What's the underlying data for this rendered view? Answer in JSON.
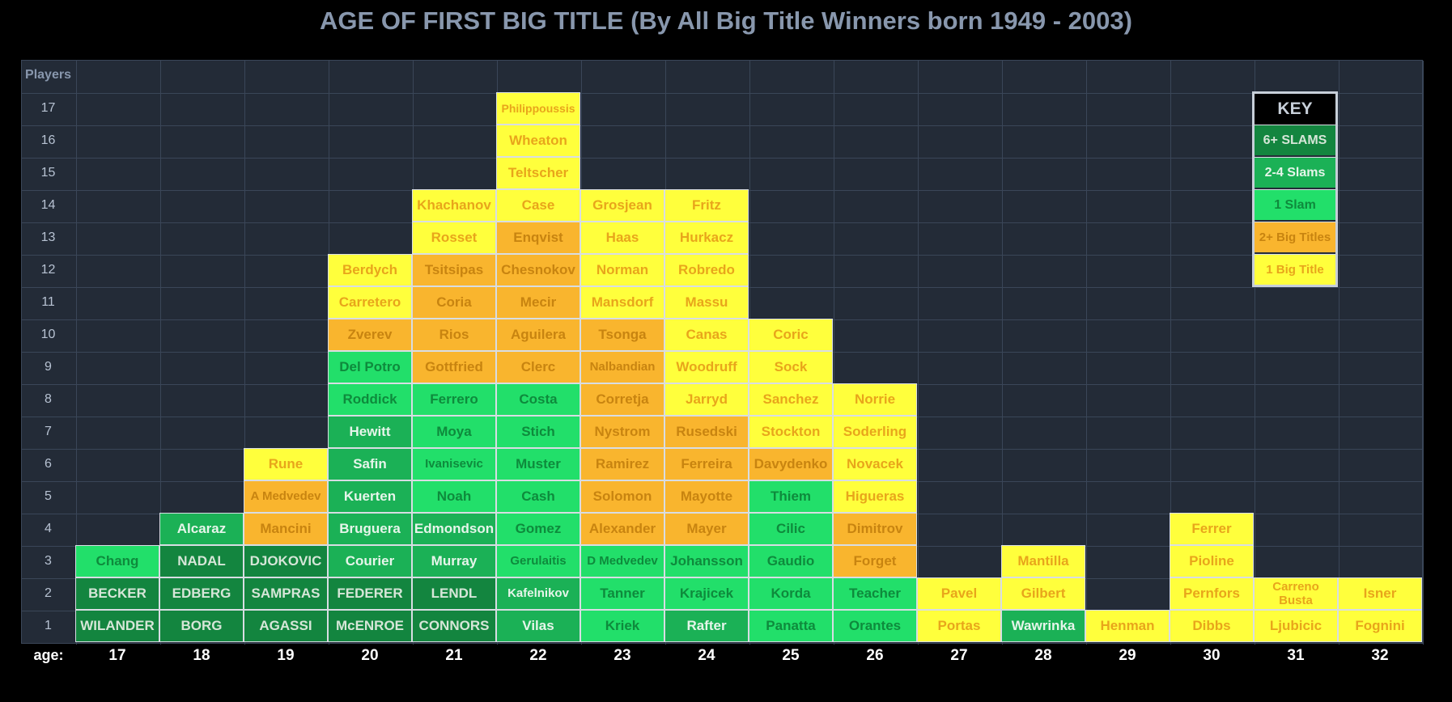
{
  "title": "AGE OF FIRST BIG TITLE (By All Big Title Winners born 1949 - 2003)",
  "chart_data": {
    "type": "table",
    "title": "AGE OF FIRST BIG TITLE (By All Big Title Winners born 1949 - 2003)",
    "ylabel": "Players",
    "xlabel": "age:",
    "x_ticks": [
      "17",
      "18",
      "19",
      "20",
      "21",
      "22",
      "23",
      "24",
      "25",
      "26",
      "27",
      "28",
      "29",
      "30",
      "31",
      "32"
    ],
    "y_ticks": [
      "1",
      "2",
      "3",
      "4",
      "5",
      "6",
      "7",
      "8",
      "9",
      "10",
      "11",
      "12",
      "13",
      "14",
      "15",
      "16",
      "17"
    ],
    "ylim": [
      0,
      17
    ],
    "category_colors": {
      "6+ SLAMS": "#13853f",
      "2-4 Slams": "#1bb156",
      "1 Slam": "#22df6a",
      "2+ Big Titles": "#f9b52e",
      "1 Big Title": "#ffff3c"
    },
    "ages": [
      {
        "age": "17",
        "players": [
          {
            "name": "WILANDER",
            "cat": "6+ SLAMS"
          },
          {
            "name": "BECKER",
            "cat": "6+ SLAMS"
          },
          {
            "name": "Chang",
            "cat": "1 Slam"
          }
        ]
      },
      {
        "age": "18",
        "players": [
          {
            "name": "BORG",
            "cat": "6+ SLAMS"
          },
          {
            "name": "EDBERG",
            "cat": "6+ SLAMS"
          },
          {
            "name": "NADAL",
            "cat": "6+ SLAMS"
          },
          {
            "name": "Alcaraz",
            "cat": "2-4 Slams"
          }
        ]
      },
      {
        "age": "19",
        "players": [
          {
            "name": "AGASSI",
            "cat": "6+ SLAMS"
          },
          {
            "name": "SAMPRAS",
            "cat": "6+ SLAMS"
          },
          {
            "name": "DJOKOVIC",
            "cat": "6+ SLAMS"
          },
          {
            "name": "Mancini",
            "cat": "2+ Big Titles"
          },
          {
            "name": "A Medvedev",
            "cat": "2+ Big Titles"
          },
          {
            "name": "Rune",
            "cat": "1 Big Title"
          }
        ]
      },
      {
        "age": "20",
        "players": [
          {
            "name": "McENROE",
            "cat": "6+ SLAMS"
          },
          {
            "name": "FEDERER",
            "cat": "6+ SLAMS"
          },
          {
            "name": "Courier",
            "cat": "2-4 Slams"
          },
          {
            "name": "Bruguera",
            "cat": "2-4 Slams"
          },
          {
            "name": "Kuerten",
            "cat": "2-4 Slams"
          },
          {
            "name": "Safin",
            "cat": "2-4 Slams"
          },
          {
            "name": "Hewitt",
            "cat": "2-4 Slams"
          },
          {
            "name": "Roddick",
            "cat": "1 Slam"
          },
          {
            "name": "Del Potro",
            "cat": "1 Slam"
          },
          {
            "name": "Zverev",
            "cat": "2+ Big Titles"
          },
          {
            "name": "Carretero",
            "cat": "1 Big Title"
          },
          {
            "name": "Berdych",
            "cat": "1 Big Title"
          }
        ]
      },
      {
        "age": "21",
        "players": [
          {
            "name": "CONNORS",
            "cat": "6+ SLAMS"
          },
          {
            "name": "LENDL",
            "cat": "6+ SLAMS"
          },
          {
            "name": "Murray",
            "cat": "2-4 Slams"
          },
          {
            "name": "Edmondson",
            "cat": "2-4 Slams"
          },
          {
            "name": "Noah",
            "cat": "1 Slam"
          },
          {
            "name": "Ivanisevic",
            "cat": "1 Slam"
          },
          {
            "name": "Moya",
            "cat": "1 Slam"
          },
          {
            "name": "Ferrero",
            "cat": "1 Slam"
          },
          {
            "name": "Gottfried",
            "cat": "2+ Big Titles"
          },
          {
            "name": "Rios",
            "cat": "2+ Big Titles"
          },
          {
            "name": "Coria",
            "cat": "2+ Big Titles"
          },
          {
            "name": "Tsitsipas",
            "cat": "2+ Big Titles"
          },
          {
            "name": "Rosset",
            "cat": "1 Big Title"
          },
          {
            "name": "Khachanov",
            "cat": "1 Big Title"
          }
        ]
      },
      {
        "age": "22",
        "players": [
          {
            "name": "Vilas",
            "cat": "2-4 Slams"
          },
          {
            "name": "Kafelnikov",
            "cat": "2-4 Slams"
          },
          {
            "name": "Gerulaitis",
            "cat": "1 Slam"
          },
          {
            "name": "Gomez",
            "cat": "1 Slam"
          },
          {
            "name": "Cash",
            "cat": "1 Slam"
          },
          {
            "name": "Muster",
            "cat": "1 Slam"
          },
          {
            "name": "Stich",
            "cat": "1 Slam"
          },
          {
            "name": "Costa",
            "cat": "1 Slam"
          },
          {
            "name": "Clerc",
            "cat": "2+ Big Titles"
          },
          {
            "name": "Aguilera",
            "cat": "2+ Big Titles"
          },
          {
            "name": "Mecir",
            "cat": "2+ Big Titles"
          },
          {
            "name": "Chesnokov",
            "cat": "2+ Big Titles"
          },
          {
            "name": "Enqvist",
            "cat": "2+ Big Titles"
          },
          {
            "name": "Case",
            "cat": "1 Big Title"
          },
          {
            "name": "Teltscher",
            "cat": "1 Big Title"
          },
          {
            "name": "Wheaton",
            "cat": "1 Big Title"
          },
          {
            "name": "Philippoussis",
            "cat": "1 Big Title"
          }
        ]
      },
      {
        "age": "23",
        "players": [
          {
            "name": "Kriek",
            "cat": "1 Slam"
          },
          {
            "name": "Tanner",
            "cat": "1 Slam"
          },
          {
            "name": "D Medvedev",
            "cat": "1 Slam"
          },
          {
            "name": "Alexander",
            "cat": "2+ Big Titles"
          },
          {
            "name": "Solomon",
            "cat": "2+ Big Titles"
          },
          {
            "name": "Ramirez",
            "cat": "2+ Big Titles"
          },
          {
            "name": "Nystrom",
            "cat": "2+ Big Titles"
          },
          {
            "name": "Corretja",
            "cat": "2+ Big Titles"
          },
          {
            "name": "Nalbandian",
            "cat": "2+ Big Titles"
          },
          {
            "name": "Tsonga",
            "cat": "2+ Big Titles"
          },
          {
            "name": "Mansdorf",
            "cat": "1 Big Title"
          },
          {
            "name": "Norman",
            "cat": "1 Big Title"
          },
          {
            "name": "Haas",
            "cat": "1 Big Title"
          },
          {
            "name": "Grosjean",
            "cat": "1 Big Title"
          }
        ]
      },
      {
        "age": "24",
        "players": [
          {
            "name": "Rafter",
            "cat": "2-4 Slams"
          },
          {
            "name": "Krajicek",
            "cat": "1 Slam"
          },
          {
            "name": "Johansson",
            "cat": "1 Slam"
          },
          {
            "name": "Mayer",
            "cat": "2+ Big Titles"
          },
          {
            "name": "Mayotte",
            "cat": "2+ Big Titles"
          },
          {
            "name": "Ferreira",
            "cat": "2+ Big Titles"
          },
          {
            "name": "Rusedski",
            "cat": "2+ Big Titles"
          },
          {
            "name": "Jarryd",
            "cat": "1 Big Title"
          },
          {
            "name": "Woodruff",
            "cat": "1 Big Title"
          },
          {
            "name": "Canas",
            "cat": "1 Big Title"
          },
          {
            "name": "Massu",
            "cat": "1 Big Title"
          },
          {
            "name": "Robredo",
            "cat": "1 Big Title"
          },
          {
            "name": "Hurkacz",
            "cat": "1 Big Title"
          },
          {
            "name": "Fritz",
            "cat": "1 Big Title"
          }
        ]
      },
      {
        "age": "25",
        "players": [
          {
            "name": "Panatta",
            "cat": "1 Slam"
          },
          {
            "name": "Korda",
            "cat": "1 Slam"
          },
          {
            "name": "Gaudio",
            "cat": "1 Slam"
          },
          {
            "name": "Cilic",
            "cat": "1 Slam"
          },
          {
            "name": "Thiem",
            "cat": "1 Slam"
          },
          {
            "name": "Davydenko",
            "cat": "2+ Big Titles"
          },
          {
            "name": "Stockton",
            "cat": "1 Big Title"
          },
          {
            "name": "Sanchez",
            "cat": "1 Big Title"
          },
          {
            "name": "Sock",
            "cat": "1 Big Title"
          },
          {
            "name": "Coric",
            "cat": "1 Big Title"
          }
        ]
      },
      {
        "age": "26",
        "players": [
          {
            "name": "Orantes",
            "cat": "1 Slam"
          },
          {
            "name": "Teacher",
            "cat": "1 Slam"
          },
          {
            "name": "Forget",
            "cat": "2+ Big Titles"
          },
          {
            "name": "Dimitrov",
            "cat": "2+ Big Titles"
          },
          {
            "name": "Higueras",
            "cat": "1 Big Title"
          },
          {
            "name": "Novacek",
            "cat": "1 Big Title"
          },
          {
            "name": "Soderling",
            "cat": "1 Big Title"
          },
          {
            "name": "Norrie",
            "cat": "1 Big Title"
          }
        ]
      },
      {
        "age": "27",
        "players": [
          {
            "name": "Portas",
            "cat": "1 Big Title"
          },
          {
            "name": "Pavel",
            "cat": "1 Big Title"
          }
        ]
      },
      {
        "age": "28",
        "players": [
          {
            "name": "Wawrinka",
            "cat": "2-4 Slams"
          },
          {
            "name": "Gilbert",
            "cat": "1 Big Title"
          },
          {
            "name": "Mantilla",
            "cat": "1 Big Title"
          }
        ]
      },
      {
        "age": "29",
        "players": [
          {
            "name": "Henman",
            "cat": "1 Big Title"
          }
        ]
      },
      {
        "age": "30",
        "players": [
          {
            "name": "Dibbs",
            "cat": "1 Big Title"
          },
          {
            "name": "Pernfors",
            "cat": "1 Big Title"
          },
          {
            "name": "Pioline",
            "cat": "1 Big Title"
          },
          {
            "name": "Ferrer",
            "cat": "1 Big Title"
          }
        ]
      },
      {
        "age": "31",
        "players": [
          {
            "name": "Ljubicic",
            "cat": "1 Big Title"
          },
          {
            "name": "Carreno Busta",
            "cat": "1 Big Title"
          }
        ]
      },
      {
        "age": "32",
        "players": [
          {
            "name": "Fognini",
            "cat": "1 Big Title"
          },
          {
            "name": "Isner",
            "cat": "1 Big Title"
          }
        ]
      }
    ]
  },
  "legend": {
    "title": "KEY",
    "items": [
      {
        "label": "6+ SLAMS",
        "cat": "6+ SLAMS"
      },
      {
        "label": "2-4 Slams",
        "cat": "2-4 Slams"
      },
      {
        "label": "1 Slam",
        "cat": "1 Slam"
      },
      {
        "label": "2+ Big Titles",
        "cat": "2+ Big Titles"
      },
      {
        "label": "1 Big Title",
        "cat": "1 Big Title"
      }
    ]
  }
}
